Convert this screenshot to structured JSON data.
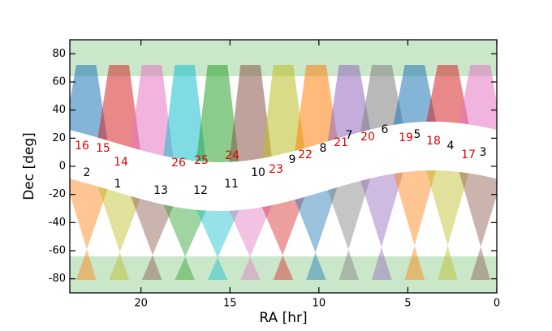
{
  "chart_data": {
    "type": "sky-coverage",
    "xlabel": "RA [hr]",
    "ylabel": "Dec [deg]",
    "xlim": [
      24,
      0
    ],
    "xticks": [
      20,
      15,
      10,
      5,
      0
    ],
    "ylim": [
      -90,
      90
    ],
    "yticks": [
      -80,
      -60,
      -40,
      -20,
      0,
      20,
      40,
      60,
      80
    ],
    "annotations": [
      {
        "text": "16",
        "color": "#e00000"
      },
      {
        "text": "15",
        "color": "#e00000"
      },
      {
        "text": "14",
        "color": "#e00000"
      },
      {
        "text": "2",
        "color": "#000000"
      },
      {
        "text": "1",
        "color": "#000000"
      },
      {
        "text": "13",
        "color": "#000000"
      },
      {
        "text": "26",
        "color": "#e00000"
      },
      {
        "text": "25",
        "color": "#e00000"
      },
      {
        "text": "24",
        "color": "#e00000"
      },
      {
        "text": "12",
        "color": "#000000"
      },
      {
        "text": "11",
        "color": "#000000"
      },
      {
        "text": "10",
        "color": "#000000"
      },
      {
        "text": "23",
        "color": "#e00000"
      },
      {
        "text": "9",
        "color": "#000000"
      },
      {
        "text": "22",
        "color": "#e00000"
      },
      {
        "text": "8",
        "color": "#000000"
      },
      {
        "text": "21",
        "color": "#e00000"
      },
      {
        "text": "7",
        "color": "#000000"
      },
      {
        "text": "20",
        "color": "#e00000"
      },
      {
        "text": "6",
        "color": "#000000"
      },
      {
        "text": "19",
        "color": "#e00000"
      },
      {
        "text": "5",
        "color": "#000000"
      },
      {
        "text": "18",
        "color": "#e00000"
      },
      {
        "text": "4",
        "color": "#000000"
      },
      {
        "text": "17",
        "color": "#e00000"
      },
      {
        "text": "3",
        "color": "#000000"
      }
    ]
  }
}
